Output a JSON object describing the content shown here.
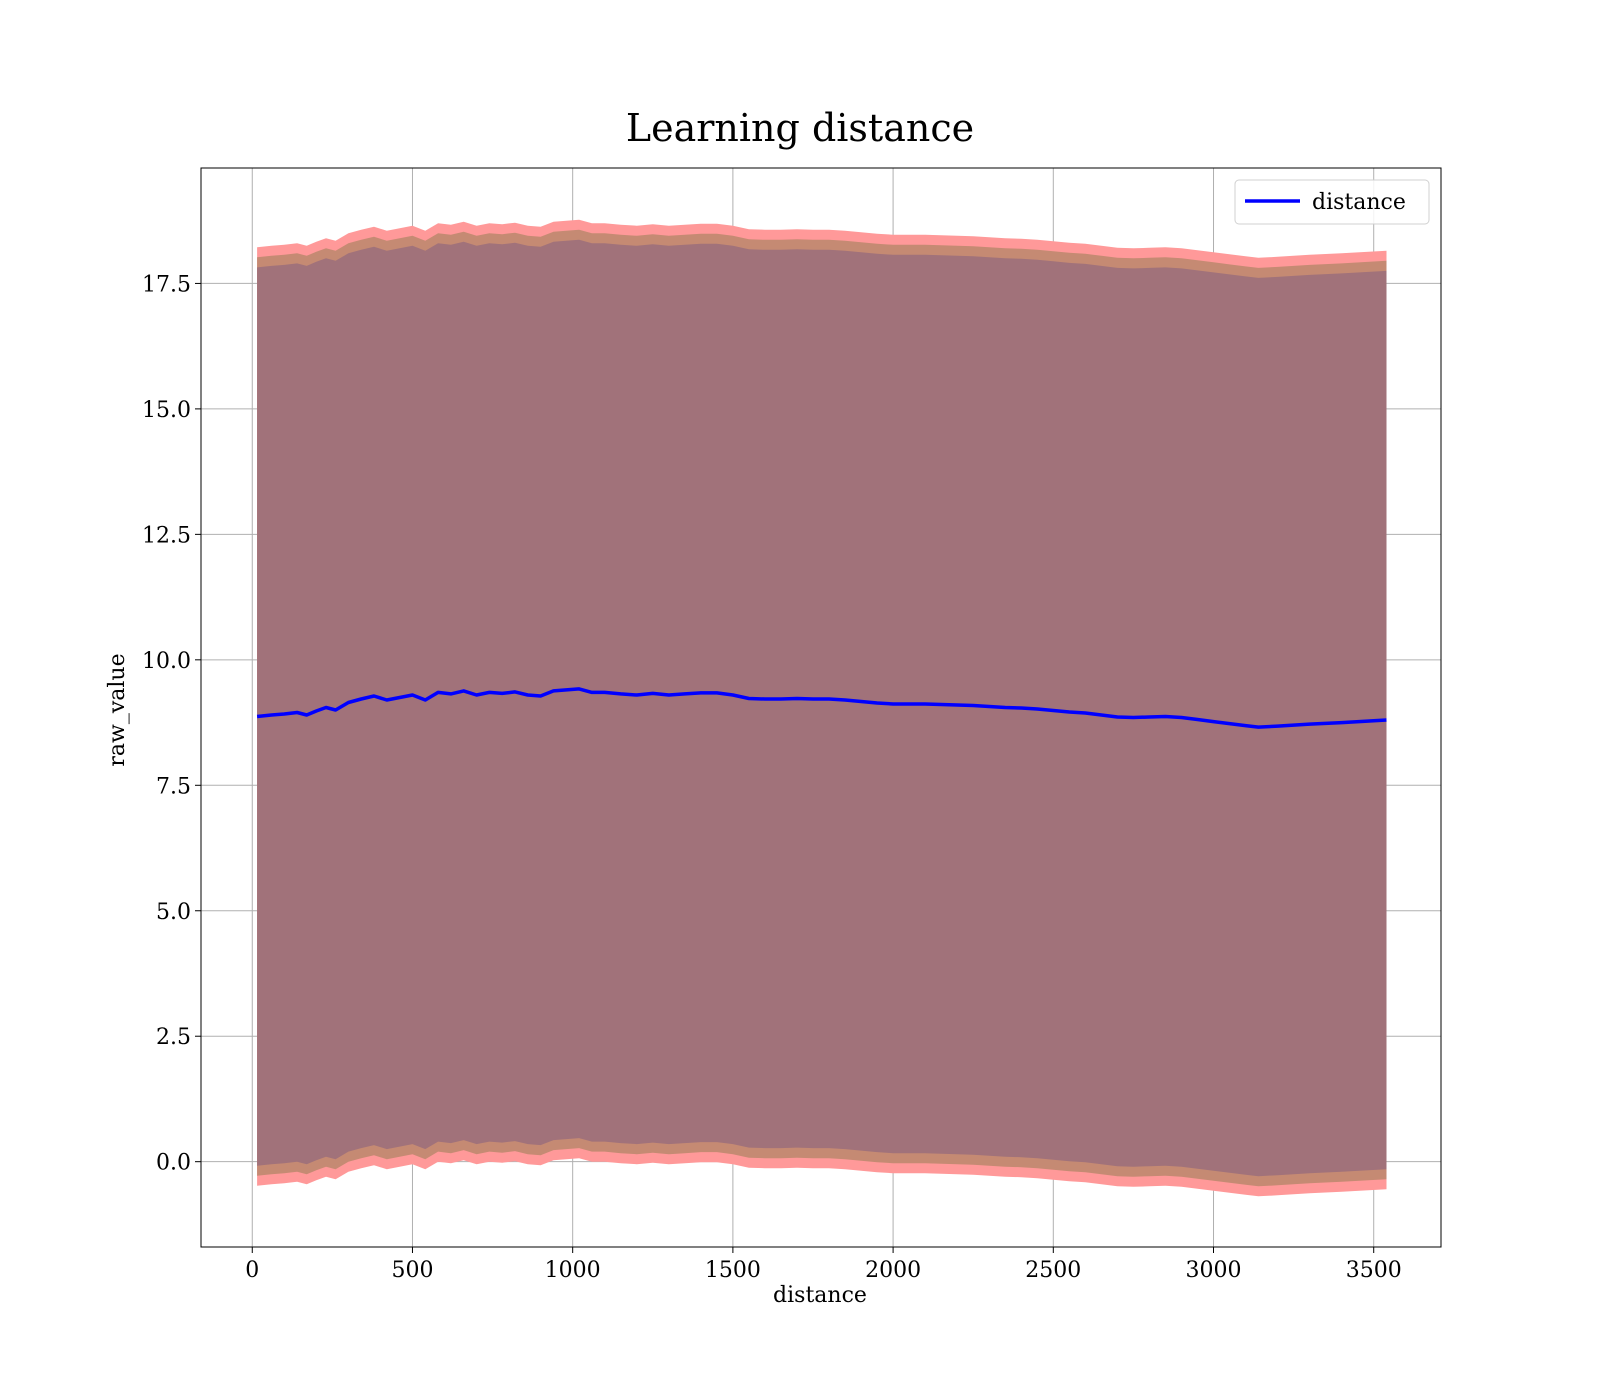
{
  "chart_data": {
    "type": "line",
    "title": "Learning distance",
    "xlabel": "distance",
    "ylabel": "raw_value",
    "xlim": [
      -160,
      3710
    ],
    "ylim": [
      -1.7,
      19.8
    ],
    "xticks": [
      0,
      500,
      1000,
      1500,
      2000,
      2500,
      3000,
      3500
    ],
    "yticks": [
      0.0,
      2.5,
      5.0,
      7.5,
      10.0,
      12.5,
      15.0,
      17.5
    ],
    "xtick_labels": [
      "0",
      "500",
      "1000",
      "1500",
      "2000",
      "2500",
      "3000",
      "3500"
    ],
    "ytick_labels": [
      "0.0",
      "2.5",
      "5.0",
      "7.5",
      "10.0",
      "12.5",
      "15.0",
      "17.5"
    ],
    "grid": true,
    "legend": {
      "placement": "top-right",
      "entries": [
        "distance"
      ]
    },
    "colors": {
      "line": "#0000ff",
      "band_outer": "#ff9999",
      "band_mid": "#c58a73",
      "band_inner": "#a1727a"
    },
    "series": [
      {
        "name": "distance",
        "x": [
          15,
          60,
          100,
          140,
          170,
          200,
          230,
          260,
          300,
          340,
          380,
          420,
          460,
          500,
          540,
          580,
          620,
          660,
          700,
          740,
          780,
          820,
          860,
          900,
          940,
          980,
          1020,
          1060,
          1100,
          1150,
          1200,
          1250,
          1300,
          1350,
          1400,
          1450,
          1500,
          1550,
          1600,
          1650,
          1700,
          1750,
          1800,
          1850,
          1900,
          1950,
          2000,
          2050,
          2100,
          2150,
          2200,
          2250,
          2300,
          2350,
          2400,
          2450,
          2500,
          2550,
          2600,
          2650,
          2700,
          2750,
          2800,
          2850,
          2900,
          2950,
          3000,
          3050,
          3100,
          3140,
          3200,
          3300,
          3400,
          3540
        ],
        "y": [
          8.87,
          8.9,
          8.92,
          8.95,
          8.9,
          8.98,
          9.05,
          9.0,
          9.15,
          9.22,
          9.28,
          9.2,
          9.25,
          9.3,
          9.2,
          9.35,
          9.32,
          9.38,
          9.3,
          9.35,
          9.33,
          9.36,
          9.3,
          9.28,
          9.38,
          9.4,
          9.42,
          9.35,
          9.35,
          9.32,
          9.3,
          9.33,
          9.3,
          9.32,
          9.34,
          9.34,
          9.3,
          9.23,
          9.22,
          9.22,
          9.23,
          9.22,
          9.22,
          9.2,
          9.17,
          9.14,
          9.12,
          9.12,
          9.12,
          9.11,
          9.1,
          9.09,
          9.07,
          9.05,
          9.04,
          9.02,
          8.99,
          8.96,
          8.94,
          8.9,
          8.86,
          8.85,
          8.86,
          8.87,
          8.85,
          8.81,
          8.77,
          8.73,
          8.69,
          8.66,
          8.68,
          8.72,
          8.75,
          8.8
        ],
        "band_half_widths": {
          "inner": 8.95,
          "mid": 9.15,
          "outer": 9.35
        }
      }
    ]
  }
}
